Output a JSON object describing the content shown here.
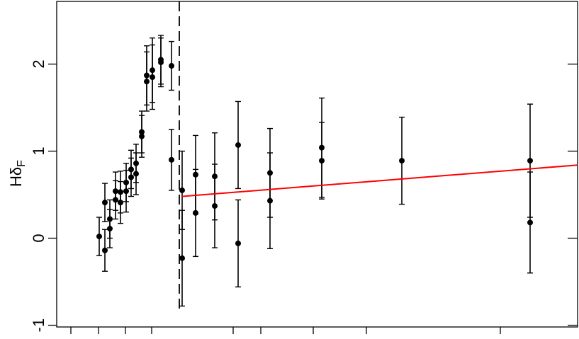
{
  "chart_data": {
    "type": "scatter",
    "ylabel": "Hδ",
    "ylabel_subscript": "F",
    "ylim": [
      -1.02,
      2.72
    ],
    "yticks": [
      -1,
      0,
      1,
      2
    ],
    "xlim": [
      0,
      735
    ],
    "xticks": [
      20,
      59,
      97,
      134,
      249,
      288,
      362,
      437,
      626
    ],
    "series": [
      {
        "color": "#000000",
        "x": [
          60,
          68,
          68,
          75,
          75,
          83,
          83,
          90,
          90,
          98,
          98,
          105,
          105,
          112,
          112,
          120,
          120,
          127,
          127,
          135,
          135,
          147,
          147,
          162,
          162,
          177,
          177,
          196,
          196,
          223,
          223,
          256,
          256,
          301,
          301,
          374,
          374,
          487,
          668,
          668
        ],
        "values": [
          0.02,
          0.41,
          -0.14,
          0.22,
          0.11,
          0.54,
          0.44,
          0.53,
          0.41,
          0.64,
          0.54,
          0.79,
          0.7,
          0.86,
          0.74,
          1.22,
          1.17,
          1.87,
          1.8,
          1.93,
          1.85,
          2.05,
          2.02,
          1.98,
          0.9,
          0.55,
          -0.23,
          0.73,
          0.29,
          0.71,
          0.37,
          1.07,
          -0.06,
          0.75,
          0.43,
          1.04,
          0.89,
          0.89,
          0.89,
          0.18
        ],
        "errors": [
          0.22,
          0.22,
          0.24,
          0.22,
          0.22,
          0.22,
          0.22,
          0.24,
          0.24,
          0.22,
          0.24,
          0.22,
          0.22,
          0.22,
          0.24,
          0.24,
          0.24,
          0.34,
          0.34,
          0.37,
          0.37,
          0.28,
          0.28,
          0.28,
          0.35,
          0.45,
          0.55,
          0.45,
          0.5,
          0.5,
          0.48,
          0.5,
          0.5,
          0.51,
          0.55,
          0.57,
          0.44,
          0.5,
          0.65,
          0.58
        ]
      }
    ],
    "fit": {
      "x": [
        177,
        735
      ],
      "values": [
        0.48,
        0.84
      ],
      "color": "#ff0000"
    },
    "vline_x": 173
  }
}
